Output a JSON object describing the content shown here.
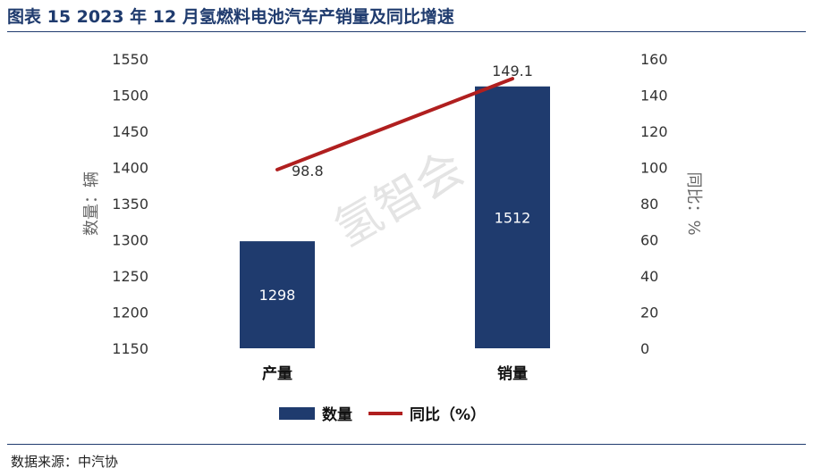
{
  "title": "图表 15  2023 年 12 月氢燃料电池汽车产销量及同比增速",
  "source": "数据来源：中汽协",
  "watermark": "氢智会",
  "chart_data": {
    "type": "bar",
    "categories": [
      "产量",
      "销量"
    ],
    "series": [
      {
        "name": "数量",
        "type": "bar",
        "axis": "left",
        "color": "#1f3b6e",
        "values": [
          1298,
          1512
        ]
      },
      {
        "name": "同比（%）",
        "type": "line",
        "axis": "right",
        "color": "#b01f1f",
        "values": [
          98.8,
          149.1
        ]
      }
    ],
    "ylabel": "数量：辆",
    "y2label": "同比：%",
    "ylim": [
      1150,
      1550
    ],
    "y2lim": [
      0,
      160
    ],
    "yticks": [
      1150,
      1200,
      1250,
      1300,
      1350,
      1400,
      1450,
      1500,
      1550
    ],
    "y2ticks": [
      0,
      20,
      40,
      60,
      80,
      100,
      120,
      140,
      160
    ],
    "legend_position": "bottom"
  }
}
